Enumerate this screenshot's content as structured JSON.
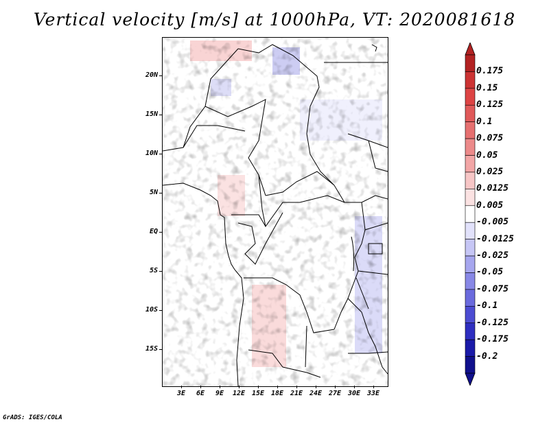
{
  "title": "Vertical velocity [m/s] at 1000hPa, VT: 2020081618",
  "credit": "GrADS: IGES/COLA",
  "map": {
    "region": "Central Africa",
    "lon_range": [
      0,
      36
    ],
    "lat_range": [
      -20,
      25
    ],
    "lat_labels": [
      "20N",
      "15N",
      "10N",
      "5N",
      "EQ",
      "5S",
      "10S",
      "15S"
    ],
    "lon_labels": [
      "3E",
      "6E",
      "9E",
      "12E",
      "15E",
      "18E",
      "21E",
      "24E",
      "27E",
      "30E",
      "33E"
    ]
  },
  "colorbar": {
    "labels": [
      "0.175",
      "0.15",
      "0.125",
      "0.1",
      "0.075",
      "0.05",
      "0.025",
      "0.0125",
      "0.005",
      "-0.005",
      "-0.0125",
      "-0.025",
      "-0.05",
      "-0.075",
      "-0.1",
      "-0.125",
      "-0.175",
      "-0.2"
    ],
    "colors": [
      "#b22222",
      "#cc3333",
      "#dd4444",
      "#e05a5a",
      "#e67070",
      "#ec8a8a",
      "#f2a6a6",
      "#f7c6c6",
      "#fbe2e2",
      "#ffffff",
      "#e2e2fb",
      "#c6c6f5",
      "#a6a6ee",
      "#8888e6",
      "#6a6add",
      "#4c4cd2",
      "#2e2ec0",
      "#1a1aa8",
      "#10108c"
    ],
    "top_arrow_color": "#b22222",
    "bottom_arrow_color": "#10108c"
  }
}
